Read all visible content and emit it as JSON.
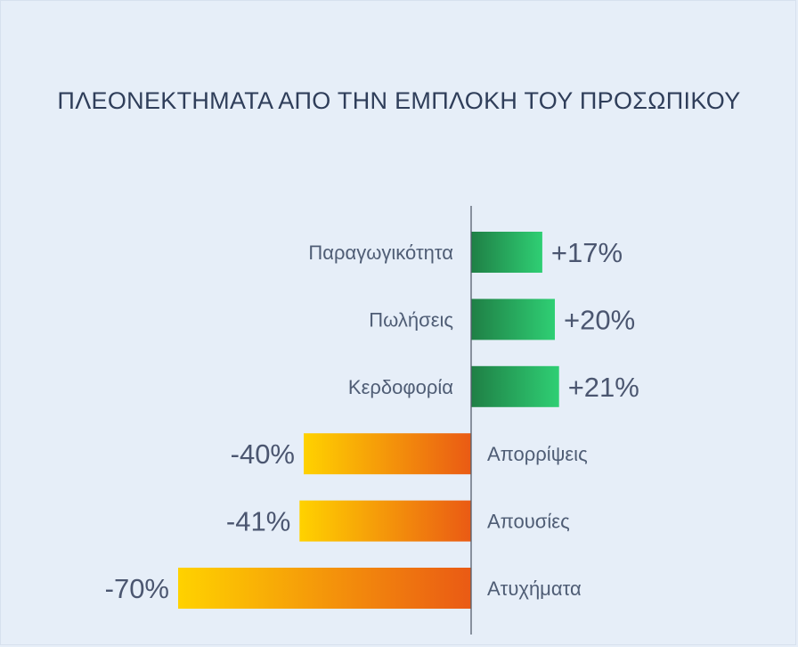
{
  "title": "ΠΛΕΟΝΕΚΤΗΜΑΤΑ ΑΠΟ ΤΗΝ ΕΜΠΛΟΚΗ ΤΟΥ ΠΡΟΣΩΠΙΚΟΥ",
  "colors": {
    "positive_start": "#1f7f45",
    "positive_end": "#2fcf74",
    "negative_start": "#ffd200",
    "negative_end": "#ea5a14",
    "axis": "#555f6d"
  },
  "chart_data": {
    "type": "bar",
    "orientation": "horizontal",
    "title": "ΠΛΕΟΝΕΚΤΗΜΑΤΑ ΑΠΟ ΤΗΝ ΕΜΠΛΟΚΗ ΤΟΥ ΠΡΟΣΩΠΙΚΟΥ",
    "categories": [
      "Παραγωγικότητα",
      "Πωλήσεις",
      "Κερδοφορία",
      "Απορρίψεις",
      "Απουσίες",
      "Ατυχήματα"
    ],
    "values": [
      17,
      20,
      21,
      -40,
      -41,
      -70
    ],
    "value_labels": [
      "+17%",
      "+20%",
      "+21%",
      "-40%",
      "-41%",
      "-70%"
    ],
    "unit": "%",
    "xlim": [
      -70,
      21
    ],
    "grid": false,
    "legend": "none"
  }
}
